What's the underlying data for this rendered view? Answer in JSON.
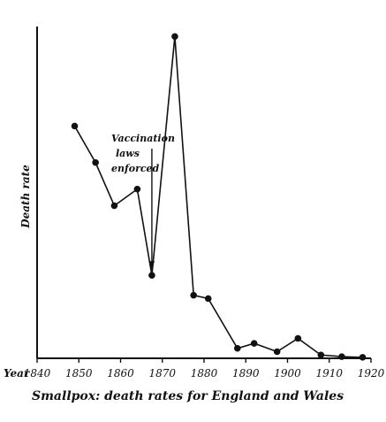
{
  "chart_data": {
    "type": "line",
    "title": "Smallpox: death rates for England and Wales",
    "xlabel": "Year",
    "ylabel": "Death rate",
    "xlim": [
      1840,
      1920
    ],
    "ylim": [
      0,
      100
    ],
    "x_ticks": [
      "1840",
      "1850",
      "1860",
      "1870",
      "1880",
      "1890",
      "1900",
      "1910",
      "1920"
    ],
    "grid": false,
    "series": [
      {
        "x": [
          1849,
          1854,
          1858.5,
          1864,
          1867.5,
          1873,
          1877.5,
          1881,
          1888,
          1892,
          1897.5,
          1902.5,
          1908,
          1913,
          1918
        ],
        "y": [
          70,
          59,
          46,
          51,
          25,
          97,
          19,
          18,
          3,
          4.5,
          2,
          6,
          1,
          0.5,
          0.3
        ]
      }
    ],
    "annotation": {
      "lines": [
        "Vaccination",
        "laws",
        "enforced"
      ],
      "target_x": 1867.5
    }
  }
}
